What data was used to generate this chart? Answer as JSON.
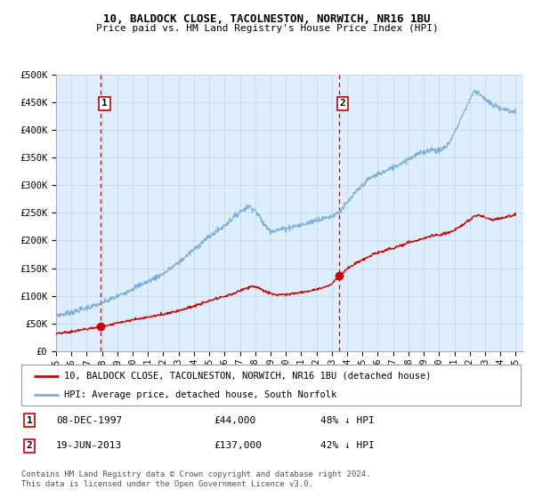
{
  "title1": "10, BALDOCK CLOSE, TACOLNESTON, NORWICH, NR16 1BU",
  "title2": "Price paid vs. HM Land Registry's House Price Index (HPI)",
  "ylim": [
    0,
    500000
  ],
  "yticks": [
    0,
    50000,
    100000,
    150000,
    200000,
    250000,
    300000,
    350000,
    400000,
    450000,
    500000
  ],
  "ytick_labels": [
    "£0",
    "£50K",
    "£100K",
    "£150K",
    "£200K",
    "£250K",
    "£300K",
    "£350K",
    "£400K",
    "£450K",
    "£500K"
  ],
  "hpi_color": "#7bafd4",
  "price_color": "#cc0000",
  "marker_color": "#cc0000",
  "bg_color": "#ddeeff",
  "sale1_date": 1997.92,
  "sale1_price": 44000,
  "sale2_date": 2013.47,
  "sale2_price": 137000,
  "legend_line1": "10, BALDOCK CLOSE, TACOLNESTON, NORWICH, NR16 1BU (detached house)",
  "legend_line2": "HPI: Average price, detached house, South Norfolk",
  "footer": "Contains HM Land Registry data © Crown copyright and database right 2024.\nThis data is licensed under the Open Government Licence v3.0.",
  "xtick_years": [
    1995,
    1996,
    1997,
    1998,
    1999,
    2000,
    2001,
    2002,
    2003,
    2004,
    2005,
    2006,
    2007,
    2008,
    2009,
    2010,
    2011,
    2012,
    2013,
    2014,
    2015,
    2016,
    2017,
    2018,
    2019,
    2020,
    2021,
    2022,
    2023,
    2024,
    2025
  ],
  "hpi_key_years": [
    1995.0,
    1995.5,
    1996.0,
    1996.5,
    1997.0,
    1997.5,
    1998.0,
    1998.5,
    1999.0,
    1999.5,
    2000.0,
    2000.5,
    2001.0,
    2001.5,
    2002.0,
    2002.5,
    2003.0,
    2003.5,
    2004.0,
    2004.5,
    2005.0,
    2005.5,
    2006.0,
    2006.5,
    2007.0,
    2007.3,
    2007.6,
    2008.0,
    2008.3,
    2008.6,
    2009.0,
    2009.3,
    2009.6,
    2010.0,
    2010.5,
    2011.0,
    2011.5,
    2012.0,
    2012.5,
    2013.0,
    2013.5,
    2014.0,
    2014.5,
    2015.0,
    2015.5,
    2016.0,
    2016.5,
    2017.0,
    2017.5,
    2018.0,
    2018.5,
    2019.0,
    2019.5,
    2020.0,
    2020.5,
    2021.0,
    2021.5,
    2022.0,
    2022.3,
    2022.6,
    2023.0,
    2023.5,
    2024.0,
    2024.5,
    2025.0
  ],
  "hpi_key_vals": [
    65000,
    67000,
    70000,
    74000,
    78000,
    82000,
    87000,
    93000,
    99000,
    106000,
    113000,
    120000,
    126000,
    133000,
    140000,
    150000,
    160000,
    172000,
    184000,
    196000,
    207000,
    217000,
    227000,
    240000,
    252000,
    258000,
    262000,
    255000,
    242000,
    228000,
    218000,
    218000,
    220000,
    222000,
    226000,
    228000,
    232000,
    238000,
    240000,
    244000,
    252000,
    268000,
    285000,
    300000,
    313000,
    320000,
    325000,
    332000,
    340000,
    348000,
    355000,
    360000,
    365000,
    362000,
    370000,
    395000,
    425000,
    455000,
    470000,
    468000,
    455000,
    445000,
    440000,
    435000,
    432000
  ],
  "prop_key_years": [
    1995.0,
    1996.0,
    1997.0,
    1997.92,
    1998.5,
    1999.5,
    2000.5,
    2001.5,
    2002.5,
    2003.5,
    2004.5,
    2005.5,
    2006.5,
    2007.3,
    2007.8,
    2008.3,
    2008.8,
    2009.3,
    2009.8,
    2010.5,
    2011.0,
    2011.5,
    2012.0,
    2012.5,
    2013.0,
    2013.47,
    2014.0,
    2014.5,
    2015.0,
    2015.5,
    2016.0,
    2016.5,
    2017.0,
    2017.5,
    2018.0,
    2018.5,
    2019.0,
    2019.5,
    2020.0,
    2020.5,
    2021.0,
    2021.5,
    2022.0,
    2022.3,
    2022.6,
    2023.0,
    2023.5,
    2024.0,
    2024.5,
    2025.0
  ],
  "prop_key_vals": [
    31000,
    35000,
    40000,
    44000,
    48000,
    54000,
    59000,
    64000,
    70000,
    77000,
    86000,
    95000,
    103000,
    113000,
    118000,
    113000,
    106000,
    102000,
    103000,
    104000,
    106000,
    109000,
    112000,
    116000,
    121000,
    137000,
    148000,
    158000,
    165000,
    172000,
    178000,
    182000,
    186000,
    191000,
    196000,
    200000,
    204000,
    208000,
    210000,
    213000,
    218000,
    228000,
    238000,
    244000,
    246000,
    242000,
    238000,
    240000,
    244000,
    247000
  ]
}
